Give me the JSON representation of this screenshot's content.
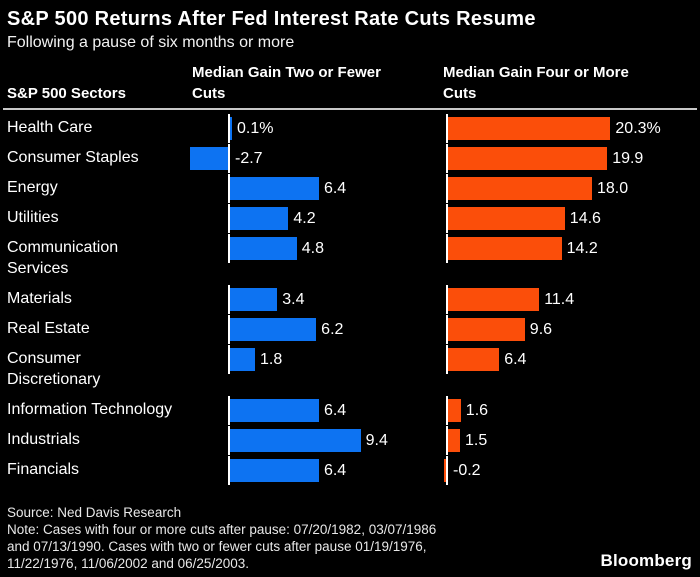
{
  "chart_data": {
    "type": "bar",
    "orientation": "horizontal",
    "title": "S&P 500 Returns After Fed Interest Rate Cuts Resume",
    "subtitle": "Following a pause of six months or more",
    "unit": "%",
    "grid": false,
    "legend_position": "column-headers",
    "column_headers": {
      "sectors": "S&P 500 Sectors",
      "col1": "Median Gain Two or Fewer\nCuts",
      "col2": "Median Gain Four or More\nCuts"
    },
    "categories": [
      "Health Care",
      "Consumer Staples",
      "Energy",
      "Utilities",
      "Communication\nServices",
      "Materials",
      "Real Estate",
      "Consumer\nDiscretionary",
      "Information Technology",
      "Industrials",
      "Financials"
    ],
    "series": [
      {
        "name": "Median Gain Two or Fewer Cuts",
        "color": "#0d73f2",
        "values": [
          0.1,
          -2.7,
          6.4,
          4.2,
          4.8,
          3.4,
          6.2,
          1.8,
          6.4,
          9.4,
          6.4
        ],
        "value_labels": [
          "0.1%",
          "-2.7",
          "6.4",
          "4.2",
          "4.8",
          "3.4",
          "6.2",
          "1.8",
          "6.4",
          "9.4",
          "6.4"
        ]
      },
      {
        "name": "Median Gain Four or More Cuts",
        "color": "#fb4e0a",
        "values": [
          20.3,
          19.9,
          18.0,
          14.6,
          14.2,
          11.4,
          9.6,
          6.4,
          1.6,
          1.5,
          -0.2
        ],
        "value_labels": [
          "20.3%",
          "19.9",
          "18.0",
          "14.6",
          "14.2",
          "11.4",
          "9.6",
          "6.4",
          "1.6",
          "1.5",
          "-0.2"
        ]
      }
    ]
  },
  "footer": {
    "source": "Source: Ned Davis Research",
    "note_lines": [
      "Note: Cases with four or more cuts after pause: 07/20/1982, 03/07/1986",
      "and 07/13/1990. Cases with two or fewer cuts after pause 01/19/1976,",
      "11/22/1976, 11/06/2002 and 06/25/2003."
    ],
    "brand": "Bloomberg"
  }
}
